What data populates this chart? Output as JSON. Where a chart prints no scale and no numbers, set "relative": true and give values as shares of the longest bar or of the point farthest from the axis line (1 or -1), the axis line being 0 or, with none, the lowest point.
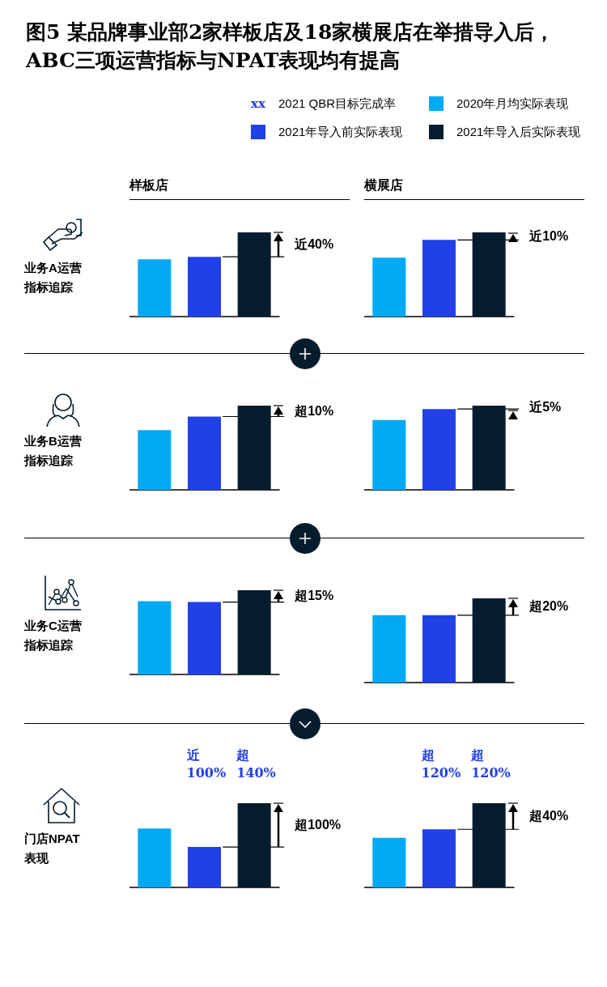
{
  "chart_data": [
    {
      "type": "other",
      "title": "图5 某品牌事业部2家样板店及18家横展店在举措导入后，ABC三项运营指标与NPAT表现均有提高",
      "annotations": [
        "xx",
        "2021 QBR目标完成率",
        "2020年月均实际表现",
        "2021年导入前实际表现",
        "2021年导入后实际表现"
      ]
    },
    {
      "type": "bar",
      "relative": true,
      "subtitle": "样板店",
      "ylabel": "业务A运营指标追踪",
      "categories": [
        null,
        null,
        null
      ],
      "values": [
        0.68,
        0.71,
        1
      ],
      "colors": [
        "#00a9f4",
        "#2140e6",
        "#051c2c"
      ],
      "ref_lines": [
        {
          "axis": "y",
          "value": 0.71
        }
      ],
      "annotations": [
        "近40%"
      ]
    },
    {
      "type": "bar",
      "relative": true,
      "subtitle": "横展店",
      "categories": [
        null,
        null,
        null
      ],
      "values": [
        0.7,
        0.91,
        1
      ],
      "colors": [
        "#00a9f4",
        "#2140e6",
        "#051c2c"
      ],
      "ref_lines": [
        {
          "axis": "y",
          "value": 0.91
        }
      ],
      "annotations": [
        "近10%"
      ]
    },
    {
      "type": "bar",
      "relative": true,
      "ylabel": "业务B运营指标追踪",
      "categories": [
        null,
        null,
        null
      ],
      "values": [
        0.71,
        0.87,
        1
      ],
      "colors": [
        "#00a9f4",
        "#2140e6",
        "#051c2c"
      ],
      "ref_lines": [
        {
          "axis": "y",
          "value": 0.87
        }
      ],
      "annotations": [
        "超10%"
      ]
    },
    {
      "type": "bar",
      "relative": true,
      "categories": [
        null,
        null,
        null
      ],
      "values": [
        0.83,
        0.96,
        1
      ],
      "colors": [
        "#00a9f4",
        "#2140e6",
        "#051c2c"
      ],
      "ref_lines": [
        {
          "axis": "y",
          "value": 0.96
        }
      ],
      "annotations": [
        "近5%"
      ]
    },
    {
      "type": "bar",
      "relative": true,
      "ylabel": "业务C运营指标追踪",
      "categories": [
        null,
        null,
        null
      ],
      "values": [
        0.87,
        0.86,
        1
      ],
      "colors": [
        "#00a9f4",
        "#2140e6",
        "#051c2c"
      ],
      "ref_lines": [
        {
          "axis": "y",
          "value": 0.86
        }
      ],
      "annotations": [
        "超15%"
      ]
    },
    {
      "type": "bar",
      "relative": true,
      "categories": [
        null,
        null,
        null
      ],
      "values": [
        0.8,
        0.8,
        1
      ],
      "colors": [
        "#00a9f4",
        "#2140e6",
        "#051c2c"
      ],
      "ref_lines": [
        {
          "axis": "y",
          "value": 0.8
        }
      ],
      "annotations": [
        "超20%"
      ]
    },
    {
      "type": "bar",
      "relative": true,
      "ylabel": "门店NPAT表现",
      "categories": [
        null,
        null,
        null
      ],
      "values": [
        0.7,
        0.48,
        1
      ],
      "colors": [
        "#00a9f4",
        "#2140e6",
        "#051c2c"
      ],
      "ref_lines": [
        {
          "axis": "y",
          "value": 0.48
        }
      ],
      "annotations": [
        "近100%",
        "超140%",
        "超100%"
      ]
    },
    {
      "type": "bar",
      "relative": true,
      "categories": [
        null,
        null,
        null
      ],
      "values": [
        0.59,
        0.69,
        1
      ],
      "colors": [
        "#00a9f4",
        "#2140e6",
        "#051c2c"
      ],
      "ref_lines": [
        {
          "axis": "y",
          "value": 0.69
        }
      ],
      "annotations": [
        "超120%",
        "超120%",
        "超40%"
      ]
    }
  ]
}
